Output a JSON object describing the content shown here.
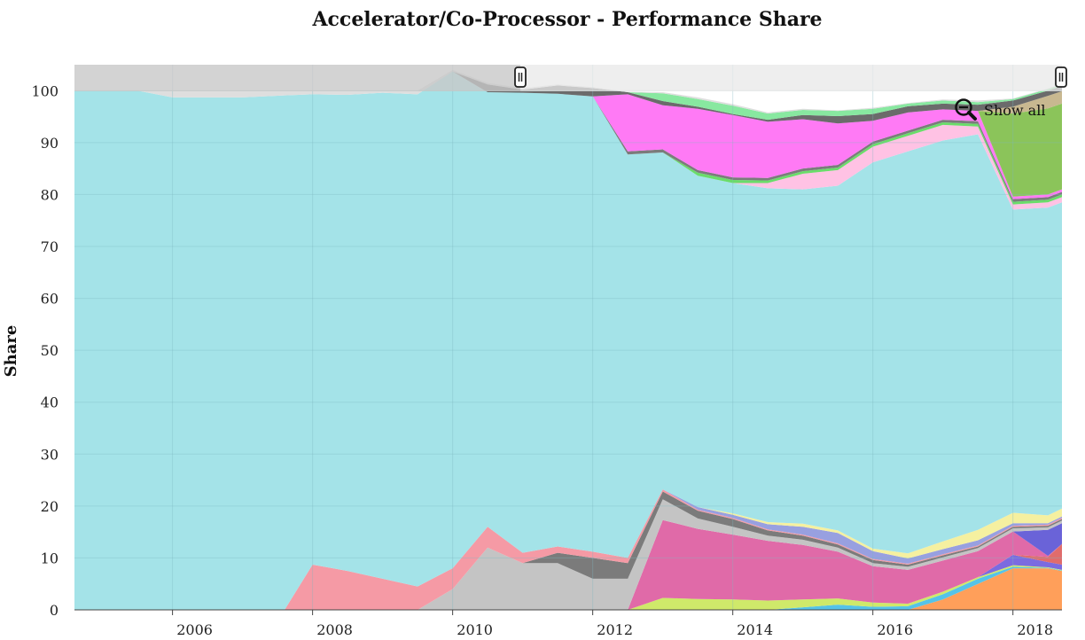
{
  "chart_data": {
    "type": "area",
    "stacked": true,
    "title": "Accelerator/Co-Processor - Performance Share",
    "xlabel": "",
    "ylabel": "Share",
    "xlim": [
      2004.6,
      2018.7
    ],
    "ylim": [
      0,
      105
    ],
    "x_ticks": [
      "2006",
      "2008",
      "2010",
      "2012",
      "2014",
      "2016",
      "2018"
    ],
    "y_ticks": [
      "0",
      "10",
      "20",
      "30",
      "40",
      "50",
      "60",
      "70",
      "80",
      "90",
      "100"
    ],
    "grid": true,
    "legend": "none",
    "x": [
      2004.6,
      2005.5,
      2006.0,
      2007.0,
      2007.6,
      2008.0,
      2008.5,
      2009.0,
      2009.5,
      2010.0,
      2010.5,
      2011.0,
      2011.5,
      2012.0,
      2012.5,
      2013.0,
      2013.5,
      2014.0,
      2014.5,
      2015.0,
      2015.5,
      2016.0,
      2016.5,
      2017.0,
      2017.5,
      2018.0,
      2018.5,
      2018.7
    ],
    "series": [
      {
        "color": "#ff9f5a",
        "values": [
          0,
          0,
          0,
          0,
          0,
          0,
          0,
          0,
          0,
          0,
          0,
          0,
          0,
          0,
          0,
          0,
          0,
          0,
          0,
          0,
          0,
          0,
          0,
          2,
          5,
          8,
          8,
          7.5
        ]
      },
      {
        "color": "#55c3e8",
        "values": [
          0,
          0,
          0,
          0,
          0,
          0,
          0,
          0,
          0,
          0,
          0,
          0,
          0,
          0,
          0,
          0,
          0,
          0,
          0,
          0.5,
          1,
          0.6,
          0.7,
          1,
          1,
          0.3,
          0.1,
          0.1
        ]
      },
      {
        "color": "#cfe96a",
        "values": [
          0,
          0,
          0,
          0,
          0,
          0,
          0,
          0,
          0,
          0,
          0,
          0,
          0,
          0,
          0,
          2.3,
          2.1,
          2,
          1.8,
          1.5,
          1.2,
          0.8,
          0.5,
          0.5,
          0.3,
          0.3,
          0.1,
          0.1
        ]
      },
      {
        "color": "#7b6be0",
        "values": [
          0,
          0,
          0,
          0,
          0,
          0,
          0,
          0,
          0,
          0,
          0,
          0,
          0,
          0,
          0,
          0,
          0,
          0,
          0,
          0,
          0,
          0,
          0,
          0,
          0,
          2,
          1,
          1
        ]
      },
      {
        "color": "#e06c6c",
        "values": [
          0,
          0,
          0,
          0,
          0,
          0,
          0,
          0,
          0,
          0,
          0,
          0,
          0,
          0,
          0,
          0,
          0,
          0,
          0,
          0,
          0,
          0,
          0,
          0,
          0,
          0,
          1,
          4
        ]
      },
      {
        "color": "#e06aa8",
        "values": [
          0,
          0,
          0,
          0,
          0,
          0,
          0,
          0,
          0,
          0,
          0,
          0,
          0,
          0,
          0,
          15,
          13.5,
          12.5,
          11.5,
          10.5,
          9,
          7,
          6.5,
          6,
          5,
          4.5,
          0.2,
          0
        ]
      },
      {
        "color": "#6a63d8",
        "values": [
          0,
          0,
          0,
          0,
          0,
          0,
          0,
          0,
          0,
          0,
          0,
          0,
          0,
          0,
          0,
          0,
          0,
          0,
          0,
          0,
          0,
          0,
          0,
          0,
          0,
          0,
          5,
          4
        ]
      },
      {
        "color": "#c4c4c4",
        "values": [
          0,
          0,
          0,
          0,
          0,
          0,
          0,
          0,
          0,
          4,
          12,
          9,
          9,
          6,
          6,
          4,
          2,
          1.5,
          1,
          1,
          0.8,
          0.6,
          0.6,
          0.6,
          0.6,
          0.6,
          0.5,
          0.5
        ]
      },
      {
        "color": "#7b7b7b",
        "values": [
          0,
          0,
          0,
          0,
          0,
          0,
          0,
          0,
          0,
          0,
          0,
          0,
          2,
          4,
          3,
          1.5,
          1.5,
          1.5,
          1,
          0.8,
          0.6,
          0.6,
          0.4,
          0.4,
          0.3,
          0.3,
          0.3,
          0.3
        ]
      },
      {
        "color": "#f59aa5",
        "values": [
          0,
          0,
          0,
          0,
          0,
          8.7,
          7.5,
          6,
          4.5,
          4,
          4,
          2,
          1.2,
          1.2,
          1,
          0.4,
          0.2,
          0.2,
          0.2,
          0.2,
          0.2,
          0.2,
          0.2,
          0.2,
          0.2,
          0.2,
          0.2,
          0.2
        ]
      },
      {
        "color": "#98a0e0",
        "values": [
          0,
          0,
          0,
          0,
          0,
          0,
          0,
          0,
          0,
          0,
          0,
          0,
          0,
          0,
          0,
          0,
          0.5,
          0.6,
          1,
          1.5,
          2,
          1.5,
          1,
          1,
          1,
          0.5,
          0.3,
          0.3
        ]
      },
      {
        "color": "#f5f0a0",
        "values": [
          0,
          0,
          0,
          0,
          0,
          0,
          0,
          0,
          0,
          0,
          0,
          0,
          0,
          0,
          0,
          0,
          0,
          0.3,
          0.4,
          0.6,
          0.5,
          0.5,
          1,
          1.5,
          2,
          2,
          1.5,
          1.5
        ]
      },
      {
        "color": "#a4e3e8",
        "values": [
          100,
          100,
          98.7,
          98.7,
          99.1,
          90.6,
          91.7,
          93.6,
          94.8,
          95.7,
          83.7,
          88.6,
          87.2,
          87.7,
          77.7,
          64.9,
          63.8,
          63.6,
          64.3,
          64.4,
          66.4,
          74.4,
          77.4,
          77.2,
          76.2,
          58.4,
          59.3,
          59.0
        ]
      },
      {
        "color": "#ffc2e4",
        "values": [
          0,
          0,
          0,
          0,
          0,
          0,
          0,
          0,
          0,
          0,
          0,
          0,
          0,
          0,
          0,
          0,
          0,
          0,
          1,
          3,
          3,
          3,
          3,
          3,
          1.5,
          1,
          1,
          1
        ]
      },
      {
        "color": "#6adc6a",
        "values": [
          0,
          0,
          0,
          0,
          0,
          0,
          0,
          0,
          0,
          0,
          0,
          0,
          0,
          0,
          0,
          0,
          0.6,
          0.6,
          0.5,
          0.5,
          0.5,
          0.5,
          0.5,
          0.5,
          0.5,
          0.5,
          0.5,
          0.5
        ]
      },
      {
        "color": "#7b7b7b",
        "values": [
          0,
          0,
          0,
          0,
          0,
          0,
          0,
          0,
          0,
          0,
          0,
          0,
          0,
          0,
          0.6,
          0.6,
          0.5,
          0.5,
          0.5,
          0.5,
          0.5,
          0.5,
          0.5,
          0.5,
          0.5,
          0.5,
          0.5,
          0.5
        ]
      },
      {
        "color": "#ff7af5",
        "values": [
          0,
          0,
          0,
          0,
          0,
          0,
          0,
          0,
          0,
          0,
          0,
          0,
          0,
          0,
          11,
          8.5,
          11.8,
          12,
          10.8,
          9.5,
          8,
          4,
          3.5,
          2,
          2,
          0.5,
          0.5,
          0.5
        ]
      },
      {
        "color": "#8bc45a",
        "values": [
          0,
          0,
          0,
          0,
          0,
          0,
          0,
          0,
          0,
          0,
          0,
          0,
          0,
          0,
          0,
          0,
          0,
          0,
          0,
          0,
          0,
          0,
          0,
          0,
          0,
          16,
          16.6,
          16.5
        ]
      },
      {
        "color": "#c8b890",
        "values": [
          0,
          0,
          0,
          0,
          0,
          0,
          0,
          0,
          0,
          0,
          0,
          0,
          0,
          0,
          0,
          0,
          0,
          0,
          0,
          0,
          0,
          0,
          0,
          0,
          0,
          1.3,
          2.4,
          2.4
        ]
      },
      {
        "color": "#6b6b6b",
        "values": [
          0,
          0,
          0,
          0,
          0,
          0,
          0,
          0,
          0,
          0,
          1.5,
          0.6,
          1.6,
          1.6,
          0.4,
          0.8,
          0.4,
          0.2,
          0.4,
          0.8,
          1.4,
          1.3,
          1.2,
          1.1,
          1.2,
          1.2,
          1,
          1
        ]
      },
      {
        "color": "#88e8a0",
        "values": [
          0,
          0,
          0,
          0,
          0,
          0,
          0,
          0,
          0,
          0,
          0,
          0,
          0,
          0,
          0,
          1.5,
          1.5,
          1.6,
          1.2,
          1,
          1,
          1,
          0.5,
          0.6,
          0.5,
          0.3,
          0.3,
          0.3
        ]
      },
      {
        "color": "#dedede",
        "values": [
          0,
          0,
          1.3,
          1.3,
          0.9,
          0.7,
          0.8,
          0.4,
          0.7,
          0.3,
          0.3,
          0.3,
          0.2,
          0.2,
          0.1,
          0.2,
          0.3,
          0.3,
          0.2,
          0.2,
          0.1,
          0.2,
          0.1,
          0.2,
          0.3,
          0.1,
          0.1,
          0.2
        ]
      }
    ]
  },
  "controls": {
    "show_all_label": "Show all",
    "zoom_icon": "zoom-out-icon",
    "range_handle_icon": "range-handle-icon"
  }
}
